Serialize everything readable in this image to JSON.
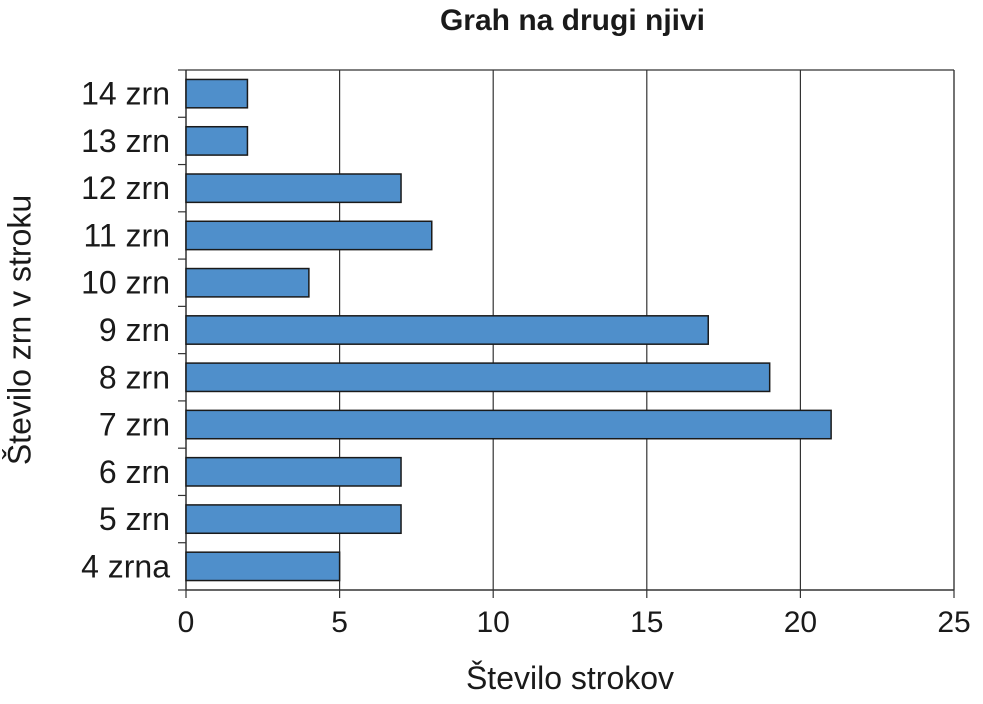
{
  "chart_data": {
    "type": "bar",
    "orientation": "horizontal",
    "title": "Grah na drugi njivi",
    "xlabel": "Število strokov",
    "ylabel": "Število zrn v stroku",
    "categories": [
      "4 zrna",
      "5 zrn",
      "6 zrn",
      "7 zrn",
      "8 zrn",
      "9 zrn",
      "10 zrn",
      "11 zrn",
      "12 zrn",
      "13 zrn",
      "14 zrn"
    ],
    "values": [
      5,
      7,
      7,
      21,
      19,
      17,
      4,
      8,
      7,
      2,
      2
    ],
    "xlim": [
      0,
      25
    ],
    "xticks": [
      0,
      5,
      10,
      15,
      20,
      25
    ],
    "grid": "vertical",
    "bar_color": "#4f8fcb",
    "bar_edge_color": "#1a1a1a"
  }
}
